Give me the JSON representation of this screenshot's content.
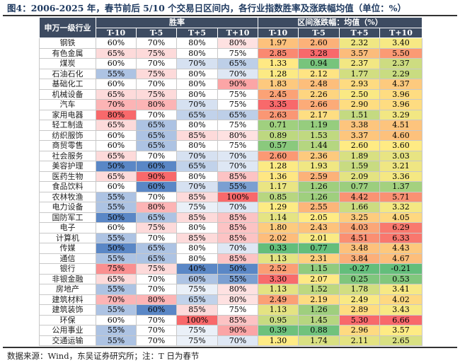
{
  "title": "图4：2006-2025 年，春节前后 5/10 个交易日区间内，各行业指数胜率及涨跌幅均值（单位：%）",
  "header": {
    "industry": "申万一级行业",
    "win_rate": "胜率",
    "return_mean": "区间涨跌幅：均值（%）",
    "periods": [
      "T-10",
      "T-5",
      "T+5",
      "T+10"
    ]
  },
  "rows": [
    [
      "钢铁",
      "60%",
      "70%",
      "80%",
      "80%",
      "1.97",
      "2.60",
      "2.32",
      "3.40"
    ],
    [
      "有色金属",
      "65%",
      "75%",
      "80%",
      "75%",
      "2.85",
      "3.28",
      "3.57",
      "5.50"
    ],
    [
      "煤炭",
      "60%",
      "70%",
      "70%",
      "65%",
      "1.33",
      "0.94",
      "2.37",
      "2.37"
    ],
    [
      "石油石化",
      "55%",
      "75%",
      "80%",
      "70%",
      "1.28",
      "2.12",
      "1.77",
      "2.29"
    ],
    [
      "基础化工",
      "60%",
      "70%",
      "80%",
      "90%",
      "1.83",
      "2.48",
      "2.93",
      "4.37"
    ],
    [
      "机械设备",
      "65%",
      "75%",
      "80%",
      "75%",
      "2.45",
      "2.26",
      "2.50",
      "3.96"
    ],
    [
      "汽车",
      "70%",
      "80%",
      "70%",
      "75%",
      "3.35",
      "2.66",
      "2.90",
      "3.96"
    ],
    [
      "家用电器",
      "80%",
      "70%",
      "65%",
      "65%",
      "2.63",
      "2.17",
      "1.51",
      "3.29"
    ],
    [
      "轻工制造",
      "65%",
      "65%",
      "80%",
      "75%",
      "0.71",
      "1.19",
      "3.38",
      "4.51"
    ],
    [
      "纺织服饰",
      "60%",
      "65%",
      "85%",
      "80%",
      "0.89",
      "1.53",
      "3.37",
      "4.60"
    ],
    [
      "商贸零售",
      "60%",
      "65%",
      "80%",
      "75%",
      "0.57",
      "1.44",
      "2.60",
      "3.60"
    ],
    [
      "社会服务",
      "65%",
      "70%",
      "70%",
      "70%",
      "2.60",
      "2.36",
      "1.89",
      "3.03"
    ],
    [
      "美容护理",
      "50%",
      "60%",
      "65%",
      "70%",
      "1.28",
      "1.93",
      "1.59",
      "3.21"
    ],
    [
      "医药生物",
      "65%",
      "90%",
      "80%",
      "85%",
      "1.36",
      "2.59",
      "2.09",
      "3.36"
    ],
    [
      "食品饮料",
      "60%",
      "60%",
      "70%",
      "55%",
      "1.17",
      "1.26",
      "0.77",
      "1.37"
    ],
    [
      "农林牧渔",
      "55%",
      "70%",
      "85%",
      "100%",
      "0.85",
      "1.26",
      "4.42",
      "5.71"
    ],
    [
      "电力设备",
      "55%",
      "80%",
      "75%",
      "70%",
      "1.29",
      "2.55",
      "1.66",
      "3.32"
    ],
    [
      "国防军工",
      "50%",
      "65%",
      "85%",
      "85%",
      "1.14",
      "2.05",
      "3.25",
      "4.05"
    ],
    [
      "电子",
      "60%",
      "75%",
      "80%",
      "85%",
      "1.80",
      "2.43",
      "4.03",
      "6.29"
    ],
    [
      "计算机",
      "55%",
      "70%",
      "85%",
      "85%",
      "2.02",
      "2.01",
      "4.51",
      "6.33"
    ],
    [
      "传媒",
      "50%",
      "65%",
      "80%",
      "70%",
      "0.33",
      "0.77",
      "3.48",
      "4.43"
    ],
    [
      "通信",
      "55%",
      "65%",
      "80%",
      "85%",
      "1.13",
      "2.31",
      "3.84",
      "4.67"
    ],
    [
      "银行",
      "75%",
      "75%",
      "40%",
      "50%",
      "2.52",
      "1.15",
      "-0.27",
      "-0.21"
    ],
    [
      "非银金融",
      "65%",
      "70%",
      "60%",
      "55%",
      "3.30",
      "2.07",
      "0.25",
      "0.53"
    ],
    [
      "房地产",
      "55%",
      "70%",
      "75%",
      "80%",
      "1.13",
      "1.52",
      "1.78",
      "3.41"
    ],
    [
      "建筑材料",
      "70%",
      "80%",
      "65%",
      "80%",
      "2.49",
      "2.19",
      "2.49",
      "4.02"
    ],
    [
      "建筑装饰",
      "55%",
      "60%",
      "85%",
      "75%",
      "1.13",
      "1.26",
      "2.89",
      "3.43"
    ],
    [
      "环保",
      "60%",
      "70%",
      "100%",
      "85%",
      "0.95",
      "1.45",
      "5.30",
      "6.66"
    ],
    [
      "公用事业",
      "55%",
      "70%",
      "75%",
      "90%",
      "0.39",
      "0.88",
      "2.96",
      "3.57"
    ],
    [
      "交通运输",
      "55%",
      "70%",
      "75%",
      "70%",
      "1.30",
      "1.74",
      "2.11",
      "2.65"
    ]
  ],
  "source": "数据来源：Wind，东吴证券研究所；注：T 日为春节",
  "colors": {
    "header_bg": "#3d4b61",
    "low_win": "#5a87c6",
    "mid": "#ffffff",
    "high_win": "#f8696b",
    "ret_low": "#63be7b",
    "ret_mid": "#ffeb84",
    "ret_high": "#f8696b"
  }
}
